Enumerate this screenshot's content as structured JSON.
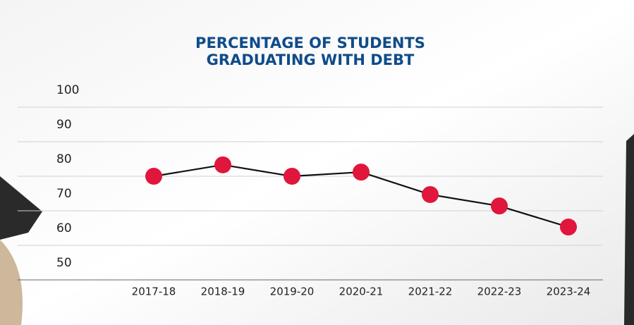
{
  "chart_data": {
    "type": "line",
    "title_lines": [
      "PERCENTAGE OF STUDENTS",
      "GRADUATING WITH DEBT"
    ],
    "categories": [
      "2017-18",
      "2018-19",
      "2019-20",
      "2020-21",
      "2021-22",
      "2022-23",
      "2023-24"
    ],
    "series": [
      {
        "color": "#e0163c",
        "values": [
          80,
          83.3,
          80,
          81.2,
          74.7,
          71.4,
          65.3
        ]
      }
    ],
    "ylim": [
      50,
      100
    ],
    "yticks": [
      50,
      60,
      70,
      80,
      90,
      100
    ],
    "grid": true
  }
}
